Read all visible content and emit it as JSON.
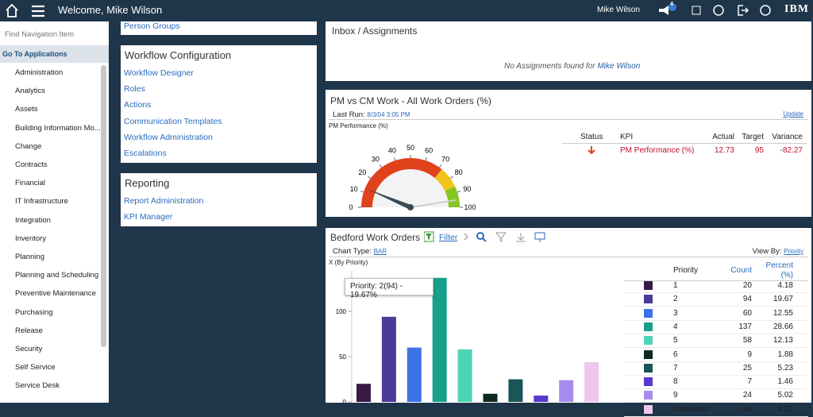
{
  "header": {
    "title": "Welcome, Mike Wilson",
    "user": "Mike Wilson",
    "notifications": 4,
    "brand": "IBM"
  },
  "sidebar": {
    "search_placeholder": "Find Navigation Item",
    "section": "Go To Applications",
    "items": [
      "Administration",
      "Analytics",
      "Assets",
      "Building Information Mo...",
      "Change",
      "Contracts",
      "Financial",
      "IT Infrastructure",
      "Integration",
      "Inventory",
      "Planning",
      "Planning and Scheduling",
      "Preventive Maintenance",
      "Purchasing",
      "Release",
      "Security",
      "Self Service",
      "Service Desk"
    ]
  },
  "left_panels": [
    {
      "links": [
        "Person Groups"
      ]
    },
    {
      "title": "Workflow Configuration",
      "links": [
        "Workflow Designer",
        "Roles",
        "Actions",
        "Communication Templates",
        "Workflow Administration",
        "Escalations"
      ]
    },
    {
      "title": "Reporting",
      "links": [
        "Report Administration",
        "KPI Manager"
      ]
    }
  ],
  "inbox": {
    "title": "Inbox / Assignments",
    "message": "No Assignments found for"
  },
  "kpi": {
    "title": "PM vs CM Work - All Work Orders (%)",
    "last_run_label": "Last Run:",
    "last_run": "8/3/04 3:05 PM",
    "update": "Update",
    "columns": [
      "Status",
      "KPI",
      "Actual",
      "Target",
      "Variance"
    ],
    "variance": -82.27
  },
  "work_orders": {
    "title": "Bedford Work Orders",
    "filter": "Filter",
    "chart_type_label": "Chart Type:",
    "chart_type": "BAR",
    "view_by_label": "View By:",
    "view_by": "Priority",
    "columns": [
      "Priority",
      "Count",
      "Percent (%)"
    ],
    "percents": [
      4.18,
      19.67,
      12.55,
      28.66,
      12.13,
      1.88,
      5.23,
      1.46,
      5.02,
      9.21
    ],
    "tooltip": "Priority: 2(94) - 19.67%"
  },
  "chart_data": [
    {
      "type": "gauge",
      "title": "PM Performance (%)",
      "value": 12.73,
      "target": 95,
      "ylim": [
        0,
        100
      ],
      "yticks": [
        0,
        10,
        20,
        30,
        40,
        50,
        60,
        70,
        80,
        90,
        100
      ],
      "bands": [
        {
          "from": 0,
          "to": 72,
          "color": "#e0431c"
        },
        {
          "from": 72,
          "to": 86,
          "color": "#f2c318"
        },
        {
          "from": 86,
          "to": 100,
          "color": "#86c522"
        }
      ]
    },
    {
      "type": "bar",
      "y_label": "X (By Priority)",
      "categories": [
        "1",
        "2",
        "3",
        "4",
        "5",
        "6",
        "7",
        "8",
        "9",
        "Undefined"
      ],
      "values": [
        20,
        94,
        60,
        137,
        58,
        9,
        25,
        7,
        24,
        44
      ],
      "colors": [
        "#3a1a45",
        "#4a3a9a",
        "#3b74e6",
        "#19a08b",
        "#4dd4b7",
        "#0f2a20",
        "#1b5558",
        "#5838cf",
        "#a68bef",
        "#efc6ec"
      ],
      "ylim": [
        0,
        145
      ],
      "yticks": [
        0,
        50,
        100
      ]
    }
  ]
}
